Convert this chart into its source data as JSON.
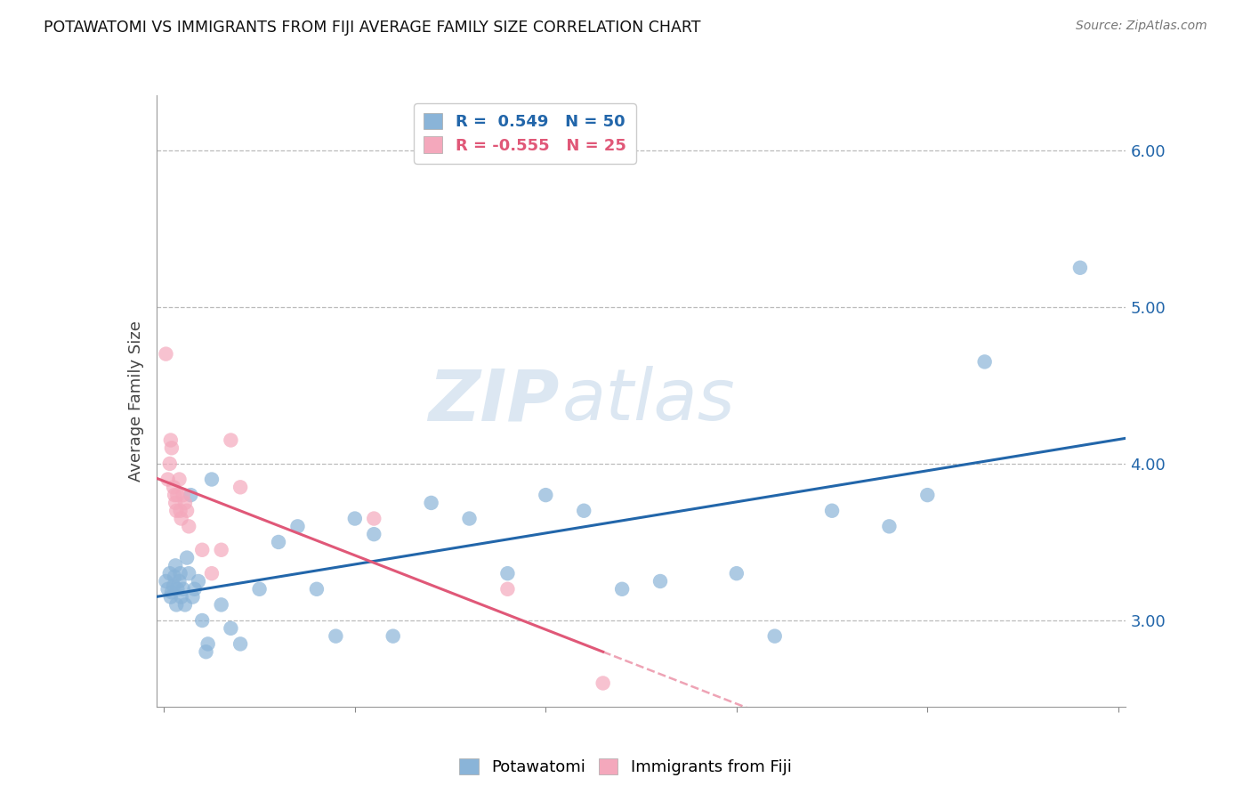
{
  "title": "POTAWATOMI VS IMMIGRANTS FROM FIJI AVERAGE FAMILY SIZE CORRELATION CHART",
  "source": "Source: ZipAtlas.com",
  "ylabel": "Average Family Size",
  "r1": 0.549,
  "n1": 50,
  "r2": -0.555,
  "n2": 25,
  "ylim_min": 2.45,
  "ylim_max": 6.35,
  "xlim_min": -0.4,
  "xlim_max": 50.4,
  "yticks": [
    3.0,
    4.0,
    5.0,
    6.0
  ],
  "color_blue": "#8ab4d8",
  "color_pink": "#f4a8bc",
  "line_blue": "#2266aa",
  "line_pink": "#e05878",
  "watermark_zip": "ZIP",
  "watermark_atlas": "atlas",
  "legend_label1": "Potawatomi",
  "legend_label2": "Immigrants from Fiji",
  "blue_x": [
    0.1,
    0.2,
    0.3,
    0.35,
    0.4,
    0.5,
    0.55,
    0.6,
    0.65,
    0.7,
    0.8,
    0.85,
    0.9,
    1.0,
    1.1,
    1.2,
    1.3,
    1.4,
    1.5,
    1.6,
    1.8,
    2.0,
    2.2,
    2.3,
    2.5,
    3.0,
    3.5,
    4.0,
    5.0,
    6.0,
    7.0,
    8.0,
    9.0,
    10.0,
    11.0,
    12.0,
    14.0,
    16.0,
    18.0,
    20.0,
    22.0,
    24.0,
    26.0,
    30.0,
    32.0,
    35.0,
    38.0,
    40.0,
    43.0,
    48.0
  ],
  "blue_y": [
    3.25,
    3.2,
    3.3,
    3.15,
    3.18,
    3.22,
    3.28,
    3.35,
    3.1,
    3.2,
    3.25,
    3.3,
    3.15,
    3.2,
    3.1,
    3.4,
    3.3,
    3.8,
    3.15,
    3.2,
    3.25,
    3.0,
    2.8,
    2.85,
    3.9,
    3.1,
    2.95,
    2.85,
    3.2,
    3.5,
    3.6,
    3.2,
    2.9,
    3.65,
    3.55,
    2.9,
    3.75,
    3.65,
    3.3,
    3.8,
    3.7,
    3.2,
    3.25,
    3.3,
    2.9,
    3.7,
    3.6,
    3.8,
    4.65,
    5.25
  ],
  "pink_x": [
    0.1,
    0.2,
    0.3,
    0.35,
    0.4,
    0.5,
    0.55,
    0.6,
    0.65,
    0.7,
    0.8,
    0.85,
    0.9,
    1.0,
    1.1,
    1.2,
    1.3,
    2.0,
    2.5,
    3.0,
    3.5,
    4.0,
    11.0,
    18.0,
    23.0
  ],
  "pink_y": [
    4.7,
    3.9,
    4.0,
    4.15,
    4.1,
    3.85,
    3.8,
    3.75,
    3.7,
    3.8,
    3.9,
    3.7,
    3.65,
    3.8,
    3.75,
    3.7,
    3.6,
    3.45,
    3.3,
    3.45,
    4.15,
    3.85,
    3.65,
    3.2,
    2.6
  ],
  "pink_solid_end": 23.0,
  "pink_dash_end": 32.0
}
